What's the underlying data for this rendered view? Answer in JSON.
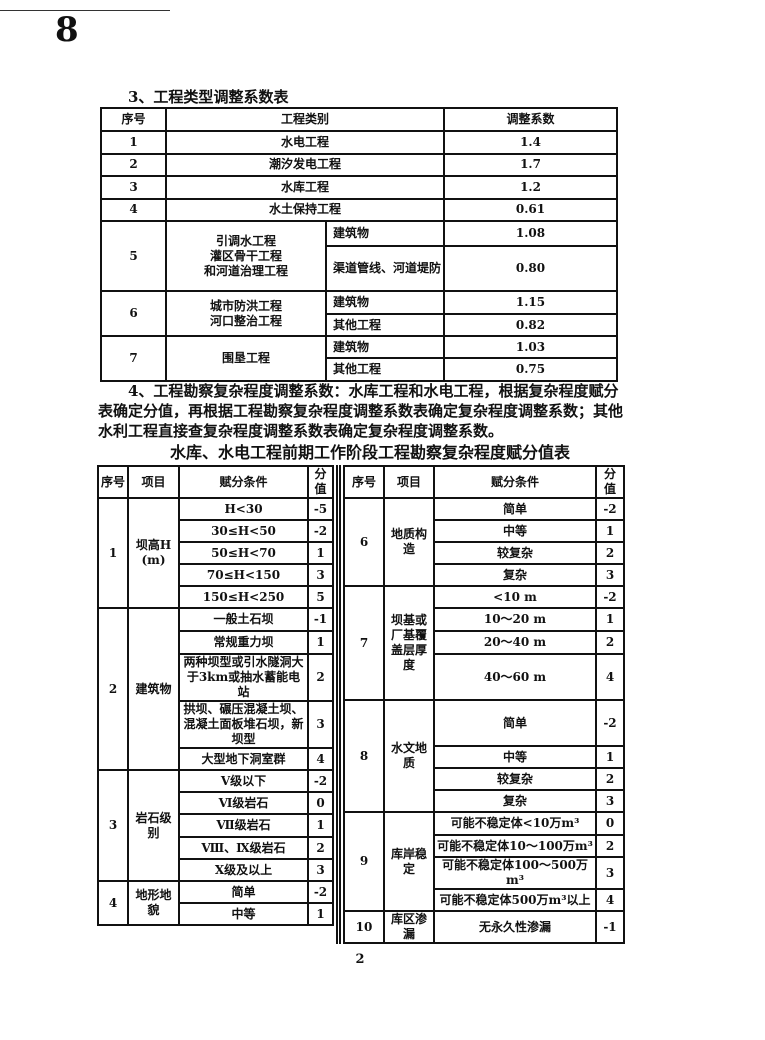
{
  "handwritten_mark": "8",
  "section3": {
    "title": "3、工程类型调整系数表",
    "headers": [
      "序号",
      "工程类别",
      "调整系数"
    ],
    "simple_rows": [
      {
        "no": "1",
        "type": "水电工程",
        "coef": "1.4"
      },
      {
        "no": "2",
        "type": "潮汐发电工程",
        "coef": "1.7"
      },
      {
        "no": "3",
        "type": "水库工程",
        "coef": "1.2"
      },
      {
        "no": "4",
        "type": "水土保持工程",
        "coef": "0.61"
      }
    ],
    "group_rows": [
      {
        "no": "5",
        "type": "引调水工程\n灌区骨干工程\n和河道治理工程",
        "subs": [
          {
            "name": "建筑物",
            "coef": "1.08"
          },
          {
            "name": "渠道管线、河道堤防",
            "coef": "0.80"
          }
        ]
      },
      {
        "no": "6",
        "type": "城市防洪工程\n河口整治工程",
        "subs": [
          {
            "name": "建筑物",
            "coef": "1.15"
          },
          {
            "name": "其他工程",
            "coef": "0.82"
          }
        ]
      },
      {
        "no": "7",
        "type": "围垦工程",
        "subs": [
          {
            "name": "建筑物",
            "coef": "1.03"
          },
          {
            "name": "其他工程",
            "coef": "0.75"
          }
        ]
      }
    ]
  },
  "section4": {
    "paragraph": "4、工程勘察复杂程度调整系数：水库工程和水电工程，根据复杂程度赋分表确定分值，再根据工程勘察复杂程度调整系数表确定复杂程度调整系数；其他水利工程直接查复杂程度调整系数表确定复杂程度调整系数。",
    "table_title": "水库、水电工程前期工作阶段工程勘察复杂程度赋分值表",
    "headers": [
      "序号",
      "项目",
      "赋分条件",
      "分值"
    ],
    "left_groups": [
      {
        "no": "1",
        "item": "坝高H\n(m)",
        "rows": [
          {
            "cond": "H<30",
            "score": "-5"
          },
          {
            "cond": "30≤H<50",
            "score": "-2"
          },
          {
            "cond": "50≤H<70",
            "score": "1"
          },
          {
            "cond": "70≤H<150",
            "score": "3"
          },
          {
            "cond": "150≤H<250",
            "score": "5"
          }
        ]
      },
      {
        "no": "2",
        "item": "建筑物",
        "rows": [
          {
            "cond": "一般土石坝",
            "score": "-1"
          },
          {
            "cond": "常规重力坝",
            "score": "1"
          },
          {
            "cond": "两种坝型或引水隧洞大于3km或抽水蓄能电站",
            "score": "2"
          },
          {
            "cond": "拱坝、碾压混凝土坝、混凝土面板堆石坝，新坝型",
            "score": "3"
          },
          {
            "cond": "大型地下洞室群",
            "score": "4"
          }
        ]
      },
      {
        "no": "3",
        "item": "岩石级别",
        "rows": [
          {
            "cond": "Ⅴ级以下",
            "score": "-2"
          },
          {
            "cond": "Ⅵ级岩石",
            "score": "0"
          },
          {
            "cond": "Ⅶ级岩石",
            "score": "1"
          },
          {
            "cond": "Ⅷ、Ⅸ级岩石",
            "score": "2"
          },
          {
            "cond": "Ⅹ级及以上",
            "score": "3"
          }
        ]
      },
      {
        "no": "4",
        "item": "地形地貌",
        "rows": [
          {
            "cond": "简单",
            "score": "-2"
          },
          {
            "cond": "中等",
            "score": "1"
          }
        ]
      }
    ],
    "right_groups": [
      {
        "no": "6",
        "item": "地质构造",
        "rows": [
          {
            "cond": "简单",
            "score": "-2"
          },
          {
            "cond": "中等",
            "score": "1"
          },
          {
            "cond": "较复杂",
            "score": "2"
          },
          {
            "cond": "复杂",
            "score": "3"
          }
        ]
      },
      {
        "no": "7",
        "item": "坝基或厂基覆盖层厚度",
        "rows": [
          {
            "cond": "<10 m",
            "score": "-2"
          },
          {
            "cond": "10～20 m",
            "score": "1"
          },
          {
            "cond": "20～40 m",
            "score": "2"
          },
          {
            "cond": "40～60 m",
            "score": "4"
          }
        ]
      },
      {
        "no": "8",
        "item": "水文地质",
        "rows": [
          {
            "cond": "简单",
            "score": "-2"
          },
          {
            "cond": "中等",
            "score": "1"
          },
          {
            "cond": "较复杂",
            "score": "2"
          },
          {
            "cond": "复杂",
            "score": "3"
          }
        ]
      },
      {
        "no": "9",
        "item": "库岸稳定",
        "rows": [
          {
            "cond": "可能不稳定体<10万m³",
            "score": "0"
          },
          {
            "cond": "可能不稳定体10～100万m³",
            "score": "2"
          },
          {
            "cond": "可能不稳定体100～500万m³",
            "score": "3"
          },
          {
            "cond": "可能不稳定体500万m³以上",
            "score": "4"
          }
        ]
      },
      {
        "no": "10",
        "item": "库区渗漏",
        "rows": [
          {
            "cond": "无永久性渗漏",
            "score": "-1"
          }
        ]
      }
    ]
  },
  "page_number": "2"
}
